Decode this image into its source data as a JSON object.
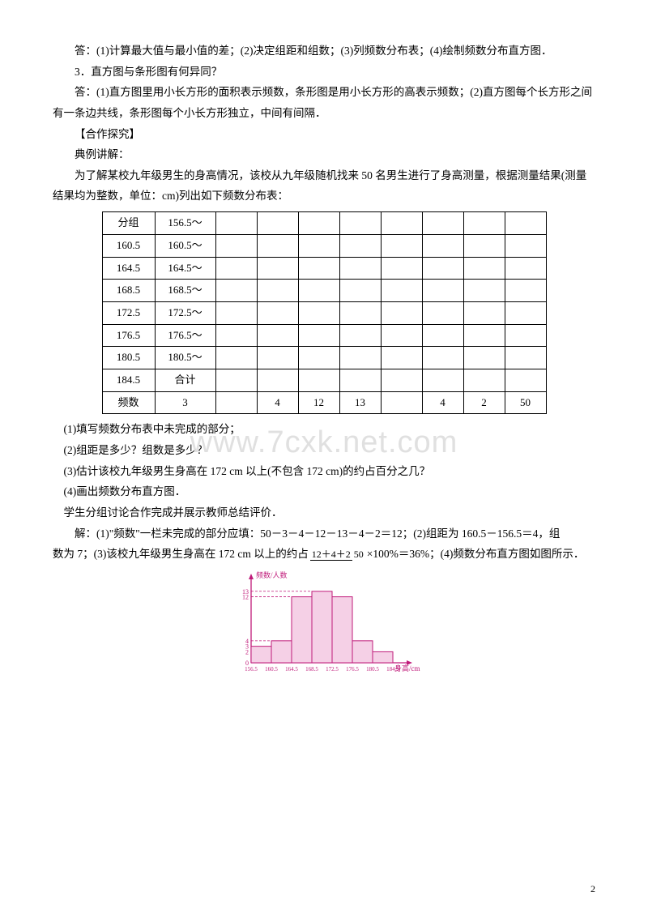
{
  "text": {
    "p1": "答：(1)计算最大值与最小值的差；(2)决定组距和组数；(3)列频数分布表；(4)绘制频数分布直方图．",
    "p2": "3．直方图与条形图有何异同？",
    "p3": "答：(1)直方图里用小长方形的面积表示频数，条形图是用小长方形的高表示频数；(2)直方图每个长方形之间有一条边共线，条形图每个小长方形独立，中间有间隔．",
    "p4": "【合作探究】",
    "p5": "典例讲解：",
    "p6": "为了解某校九年级男生的身高情况，该校从九年级随机找来 50 名男生进行了身高测量，根据测量结果(测量结果均为整数，单位：cm)列出如下频数分布表：",
    "q1": "(1)填写频数分布表中未完成的部分；",
    "q2": "(2)组距是多少？组数是多少？",
    "q3": "(3)估计该校九年级男生身高在 172 cm 以上(不包含 172 cm)的约占百分之几？",
    "q4": "(4)画出频数分布直方图．",
    "s1": "学生分组讨论合作完成并展示教师总结评价．",
    "sol1a": "解：(1)\"频数\"一栏未完成的部分应填：50－3－4－12－13－4－2＝12；(2)组距为 160.5－156.5＝4，组",
    "sol1b_pre": "数为 7；(3)该校九年级男生身高在 172 cm 以上的约占",
    "sol1b_post": "×100%＝36%；(4)频数分布直方图如图所示．",
    "frac_num": "12＋4＋2",
    "frac_den": "50",
    "watermark": "www.7cxk.net.com",
    "pagenum": "2"
  },
  "table": {
    "col1": [
      "分组",
      "160.5",
      "164.5",
      "168.5",
      "172.5",
      "176.5",
      "180.5",
      "184.5",
      "频数"
    ],
    "col2": [
      "156.5～",
      "160.5～",
      "164.5～",
      "168.5～",
      "172.5～",
      "176.5～",
      "180.5～",
      "合计",
      ""
    ],
    "row9": [
      "3",
      "",
      "4",
      "12",
      "13",
      "",
      "4",
      "2",
      "50"
    ]
  },
  "chart": {
    "axis_y_label": "频数/人数",
    "axis_x_label": "身高/cm",
    "x_ticks": [
      "156.5",
      "160.5",
      "164.5",
      "168.5",
      "172.5",
      "176.5",
      "180.5",
      "184.5"
    ],
    "y_ticks": [
      0,
      2,
      3,
      4,
      12,
      13
    ],
    "bars": [
      3,
      4,
      12,
      13,
      12,
      4,
      2
    ],
    "line_color": "#c01b7a",
    "text_color": "#c01b7a",
    "fill_color": "#f5d0e6",
    "font_size": 8
  }
}
